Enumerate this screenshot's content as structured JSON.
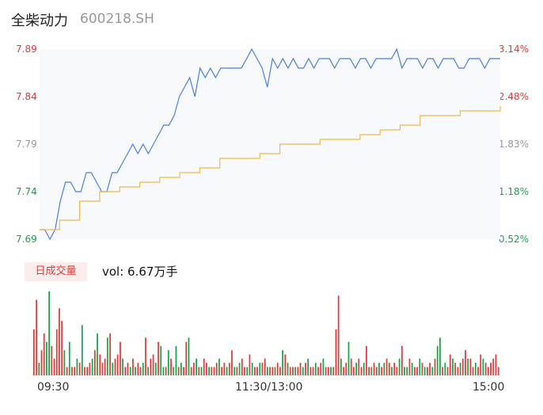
{
  "stock": {
    "name": "全柴动力",
    "code": "600218.SH"
  },
  "indicator": {
    "label": "日成交量",
    "vol_label": "vol: 6.67万手"
  },
  "chart_data": {
    "type": "line",
    "price_axis": {
      "ticks": [
        "7.89",
        "7.84",
        "7.79",
        "7.74",
        "7.69"
      ],
      "colors": [
        "#e53935",
        "#e53935",
        "#999999",
        "#1aa34a",
        "#1aa34a"
      ],
      "ylim": [
        7.69,
        7.89
      ]
    },
    "pct_axis": {
      "ticks": [
        "3.14%",
        "2.48%",
        "1.83%",
        "1.18%",
        "0.52%"
      ],
      "colors": [
        "#e53935",
        "#e53935",
        "#999999",
        "#1aa34a",
        "#1aa34a"
      ]
    },
    "x_ticks": [
      "09:30",
      "11:30/13:00",
      "15:00"
    ],
    "series": [
      {
        "color": "#4a7fe0",
        "values": [
          7.7,
          7.7,
          7.69,
          7.7,
          7.73,
          7.75,
          7.75,
          7.74,
          7.74,
          7.76,
          7.76,
          7.75,
          7.74,
          7.74,
          7.76,
          7.76,
          7.77,
          7.78,
          7.79,
          7.78,
          7.79,
          7.78,
          7.79,
          7.8,
          7.81,
          7.81,
          7.82,
          7.84,
          7.85,
          7.86,
          7.84,
          7.87,
          7.86,
          7.87,
          7.86,
          7.87,
          7.87,
          7.87,
          7.87,
          7.87,
          7.88,
          7.89,
          7.88,
          7.87,
          7.85,
          7.88,
          7.87,
          7.88,
          7.87,
          7.88,
          7.87,
          7.87,
          7.88,
          7.87,
          7.88,
          7.88,
          7.88,
          7.87,
          7.88,
          7.88,
          7.88,
          7.87,
          7.88,
          7.88,
          7.87,
          7.88,
          7.88,
          7.88,
          7.88,
          7.89,
          7.87,
          7.88,
          7.88,
          7.88,
          7.87,
          7.88,
          7.88,
          7.87,
          7.88,
          7.88,
          7.88,
          7.87,
          7.87,
          7.88,
          7.88,
          7.88,
          7.87,
          7.88,
          7.88,
          7.88
        ],
        "x_range": [
          0,
          239
        ]
      },
      {
        "color": "#f2b84b",
        "values": [
          7.7,
          7.71,
          7.73,
          7.74,
          7.745,
          7.75,
          7.755,
          7.76,
          7.765,
          7.775,
          7.775,
          7.78,
          7.79,
          7.79,
          7.795,
          7.795,
          7.8,
          7.805,
          7.81,
          7.82,
          7.82,
          7.825,
          7.825,
          7.83
        ],
        "x_range": [
          0,
          239
        ]
      }
    ],
    "volume": {
      "values": [
        55,
        90,
        15,
        30,
        50,
        40,
        100,
        35,
        20,
        55,
        80,
        65,
        30,
        10,
        40,
        10,
        10,
        20,
        15,
        60,
        10,
        10,
        15,
        20,
        30,
        50,
        25,
        15,
        20,
        45,
        50,
        15,
        20,
        25,
        40,
        20,
        10,
        15,
        10,
        20,
        10,
        15,
        10,
        15,
        45,
        10,
        20,
        25,
        15,
        40,
        35,
        10,
        10,
        30,
        20,
        10,
        35,
        10,
        15,
        10,
        40,
        45,
        10,
        15,
        20,
        10,
        10,
        20,
        15,
        10,
        10,
        10,
        15,
        20,
        10,
        15,
        10,
        15,
        30,
        10,
        10,
        15,
        20,
        10,
        10,
        25,
        15,
        10,
        10,
        15,
        15,
        20,
        10,
        10,
        10,
        10,
        15,
        10,
        30,
        25,
        15,
        10,
        10,
        10,
        10,
        15,
        10,
        15,
        20,
        10,
        10,
        15,
        10,
        15,
        20,
        10,
        10,
        10,
        10,
        55,
        95,
        20,
        10,
        15,
        40,
        20,
        10,
        15,
        20,
        10,
        15,
        35,
        10,
        10,
        15,
        10,
        15,
        10,
        15,
        20,
        15,
        10,
        15,
        10,
        20,
        35,
        10,
        10,
        20,
        15,
        10,
        10,
        20,
        15,
        10,
        10,
        15,
        10,
        20,
        35,
        45,
        10,
        15,
        10,
        25,
        20,
        15,
        10,
        15,
        20,
        30,
        20,
        20,
        10,
        15,
        10,
        25,
        20,
        15,
        10,
        15,
        20,
        25,
        10
      ],
      "colors": [
        "#e53935",
        "#e53935",
        "#1aa34a",
        "#e53935",
        "#e53935",
        "#1aa34a",
        "#1aa34a",
        "#e53935",
        "#e53935",
        "#e53935",
        "#e53935",
        "#e53935",
        "#1aa34a",
        "#e53935",
        "#1aa34a",
        "#e53935",
        "#e53935",
        "#1aa34a",
        "#e53935",
        "#1aa34a",
        "#e53935",
        "#e53935",
        "#e53935",
        "#1aa34a",
        "#e53935",
        "#1aa34a",
        "#e53935",
        "#e53935",
        "#e53935",
        "#1aa34a",
        "#e53935",
        "#1aa34a",
        "#e53935",
        "#e53935",
        "#e53935",
        "#1aa34a",
        "#e53935",
        "#e53935",
        "#1aa34a",
        "#e53935",
        "#1aa34a",
        "#e53935",
        "#e53935",
        "#1aa34a",
        "#e53935",
        "#1aa34a",
        "#e53935",
        "#e53935",
        "#1aa34a",
        "#e53935",
        "#1aa34a",
        "#1aa34a",
        "#e53935",
        "#1aa34a",
        "#e53935",
        "#1aa34a",
        "#1aa34a",
        "#e53935",
        "#1aa34a",
        "#e53935",
        "#e53935",
        "#1aa34a",
        "#e53935",
        "#e53935",
        "#1aa34a",
        "#e53935",
        "#1aa34a",
        "#e53935",
        "#e53935",
        "#1aa34a",
        "#e53935",
        "#e53935",
        "#e53935",
        "#1aa34a",
        "#e53935",
        "#e53935",
        "#1aa34a",
        "#e53935",
        "#e53935",
        "#1aa34a",
        "#e53935",
        "#1aa34a",
        "#e53935",
        "#e53935",
        "#1aa34a",
        "#e53935",
        "#1aa34a",
        "#e53935",
        "#e53935",
        "#1aa34a",
        "#e53935",
        "#e53935",
        "#1aa34a",
        "#e53935",
        "#e53935",
        "#1aa34a",
        "#e53935",
        "#e53935",
        "#1aa34a",
        "#e53935",
        "#1aa34a",
        "#e53935",
        "#e53935",
        "#1aa34a",
        "#e53935",
        "#e53935",
        "#1aa34a",
        "#e53935",
        "#1aa34a",
        "#e53935",
        "#e53935",
        "#1aa34a",
        "#e53935",
        "#e53935",
        "#1aa34a",
        "#e53935",
        "#e53935",
        "#1aa34a",
        "#e53935",
        "#e53935",
        "#e53935",
        "#1aa34a",
        "#e53935",
        "#e53935",
        "#1aa34a",
        "#e53935",
        "#e53935",
        "#1aa34a",
        "#e53935",
        "#e53935",
        "#1aa34a",
        "#e53935",
        "#e53935",
        "#1aa34a",
        "#e53935",
        "#e53935",
        "#1aa34a",
        "#e53935",
        "#1aa34a",
        "#e53935",
        "#e53935",
        "#1aa34a",
        "#e53935",
        "#e53935",
        "#1aa34a",
        "#e53935",
        "#1aa34a",
        "#1aa34a",
        "#e53935",
        "#1aa34a",
        "#e53935",
        "#e53935",
        "#1aa34a",
        "#e53935",
        "#1aa34a",
        "#e53935",
        "#e53935",
        "#1aa34a",
        "#e53935",
        "#1aa34a",
        "#1aa34a",
        "#e53935",
        "#1aa34a",
        "#e53935",
        "#e53935",
        "#1aa34a",
        "#e53935",
        "#e53935",
        "#1aa34a",
        "#e53935",
        "#e53935",
        "#1aa34a",
        "#e53935",
        "#e53935",
        "#1aa34a",
        "#e53935",
        "#e53935",
        "#1aa34a",
        "#e53935",
        "#e53935",
        "#e53935",
        "#e53935"
      ]
    }
  }
}
